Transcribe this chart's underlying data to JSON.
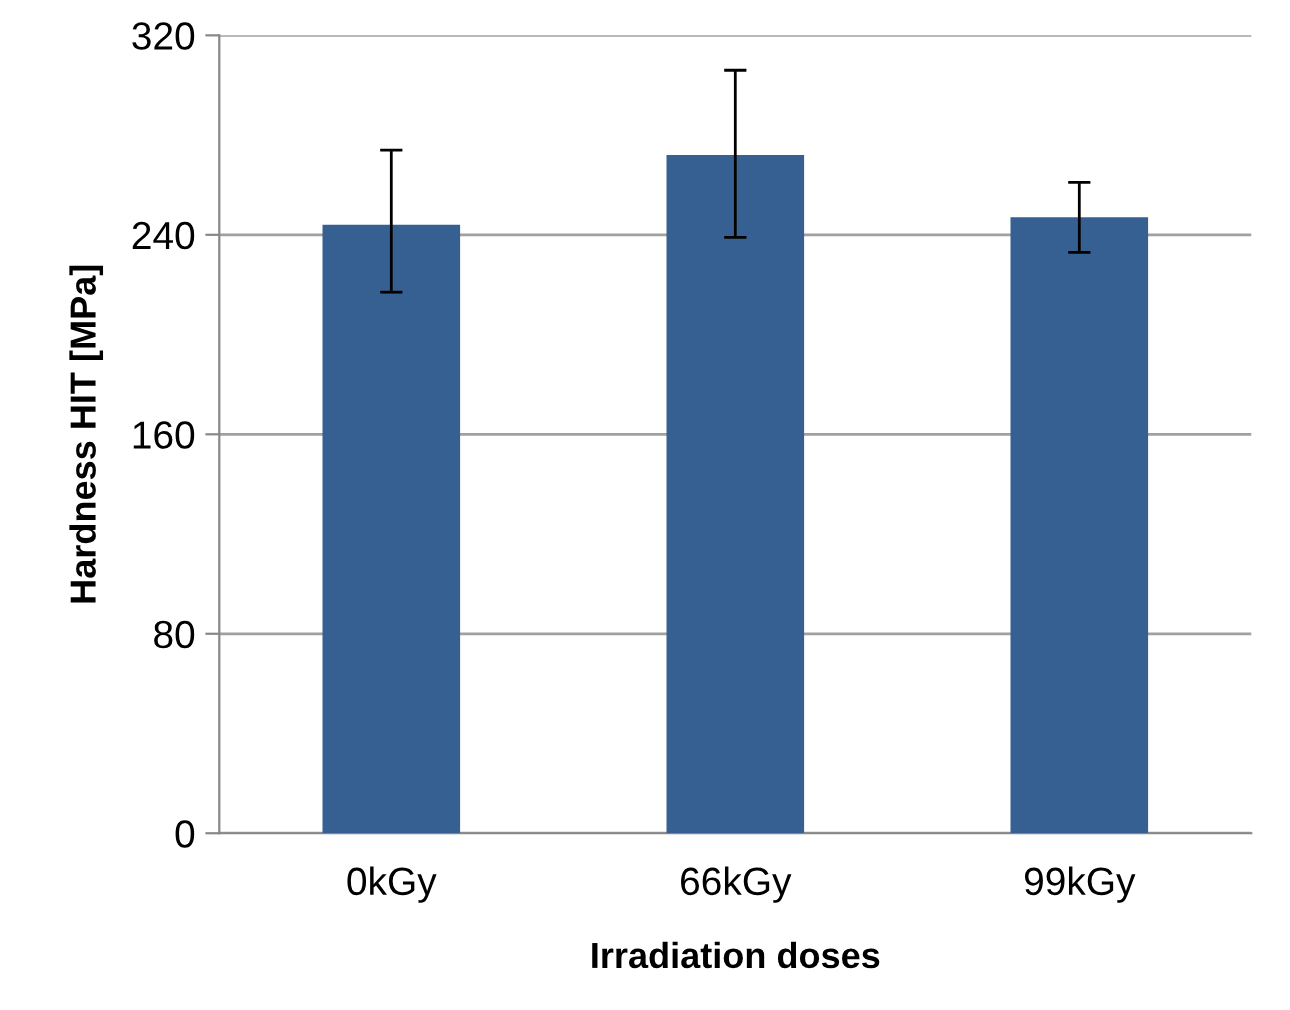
{
  "chart_data": {
    "type": "bar",
    "xlabel": "Irradiation doses",
    "ylabel": "Hardness HIT [MPa]",
    "categories": [
      "0kGy",
      "66kGy",
      "99kGy"
    ],
    "values": [
      244,
      272,
      247
    ],
    "errors": [
      [
        217,
        274
      ],
      [
        239,
        306
      ],
      [
        233,
        261
      ]
    ],
    "color": "#376092",
    "ylim": [
      0,
      320
    ],
    "yticks": [
      0,
      80,
      160,
      240,
      320
    ],
    "grid": "y",
    "legend": false
  }
}
